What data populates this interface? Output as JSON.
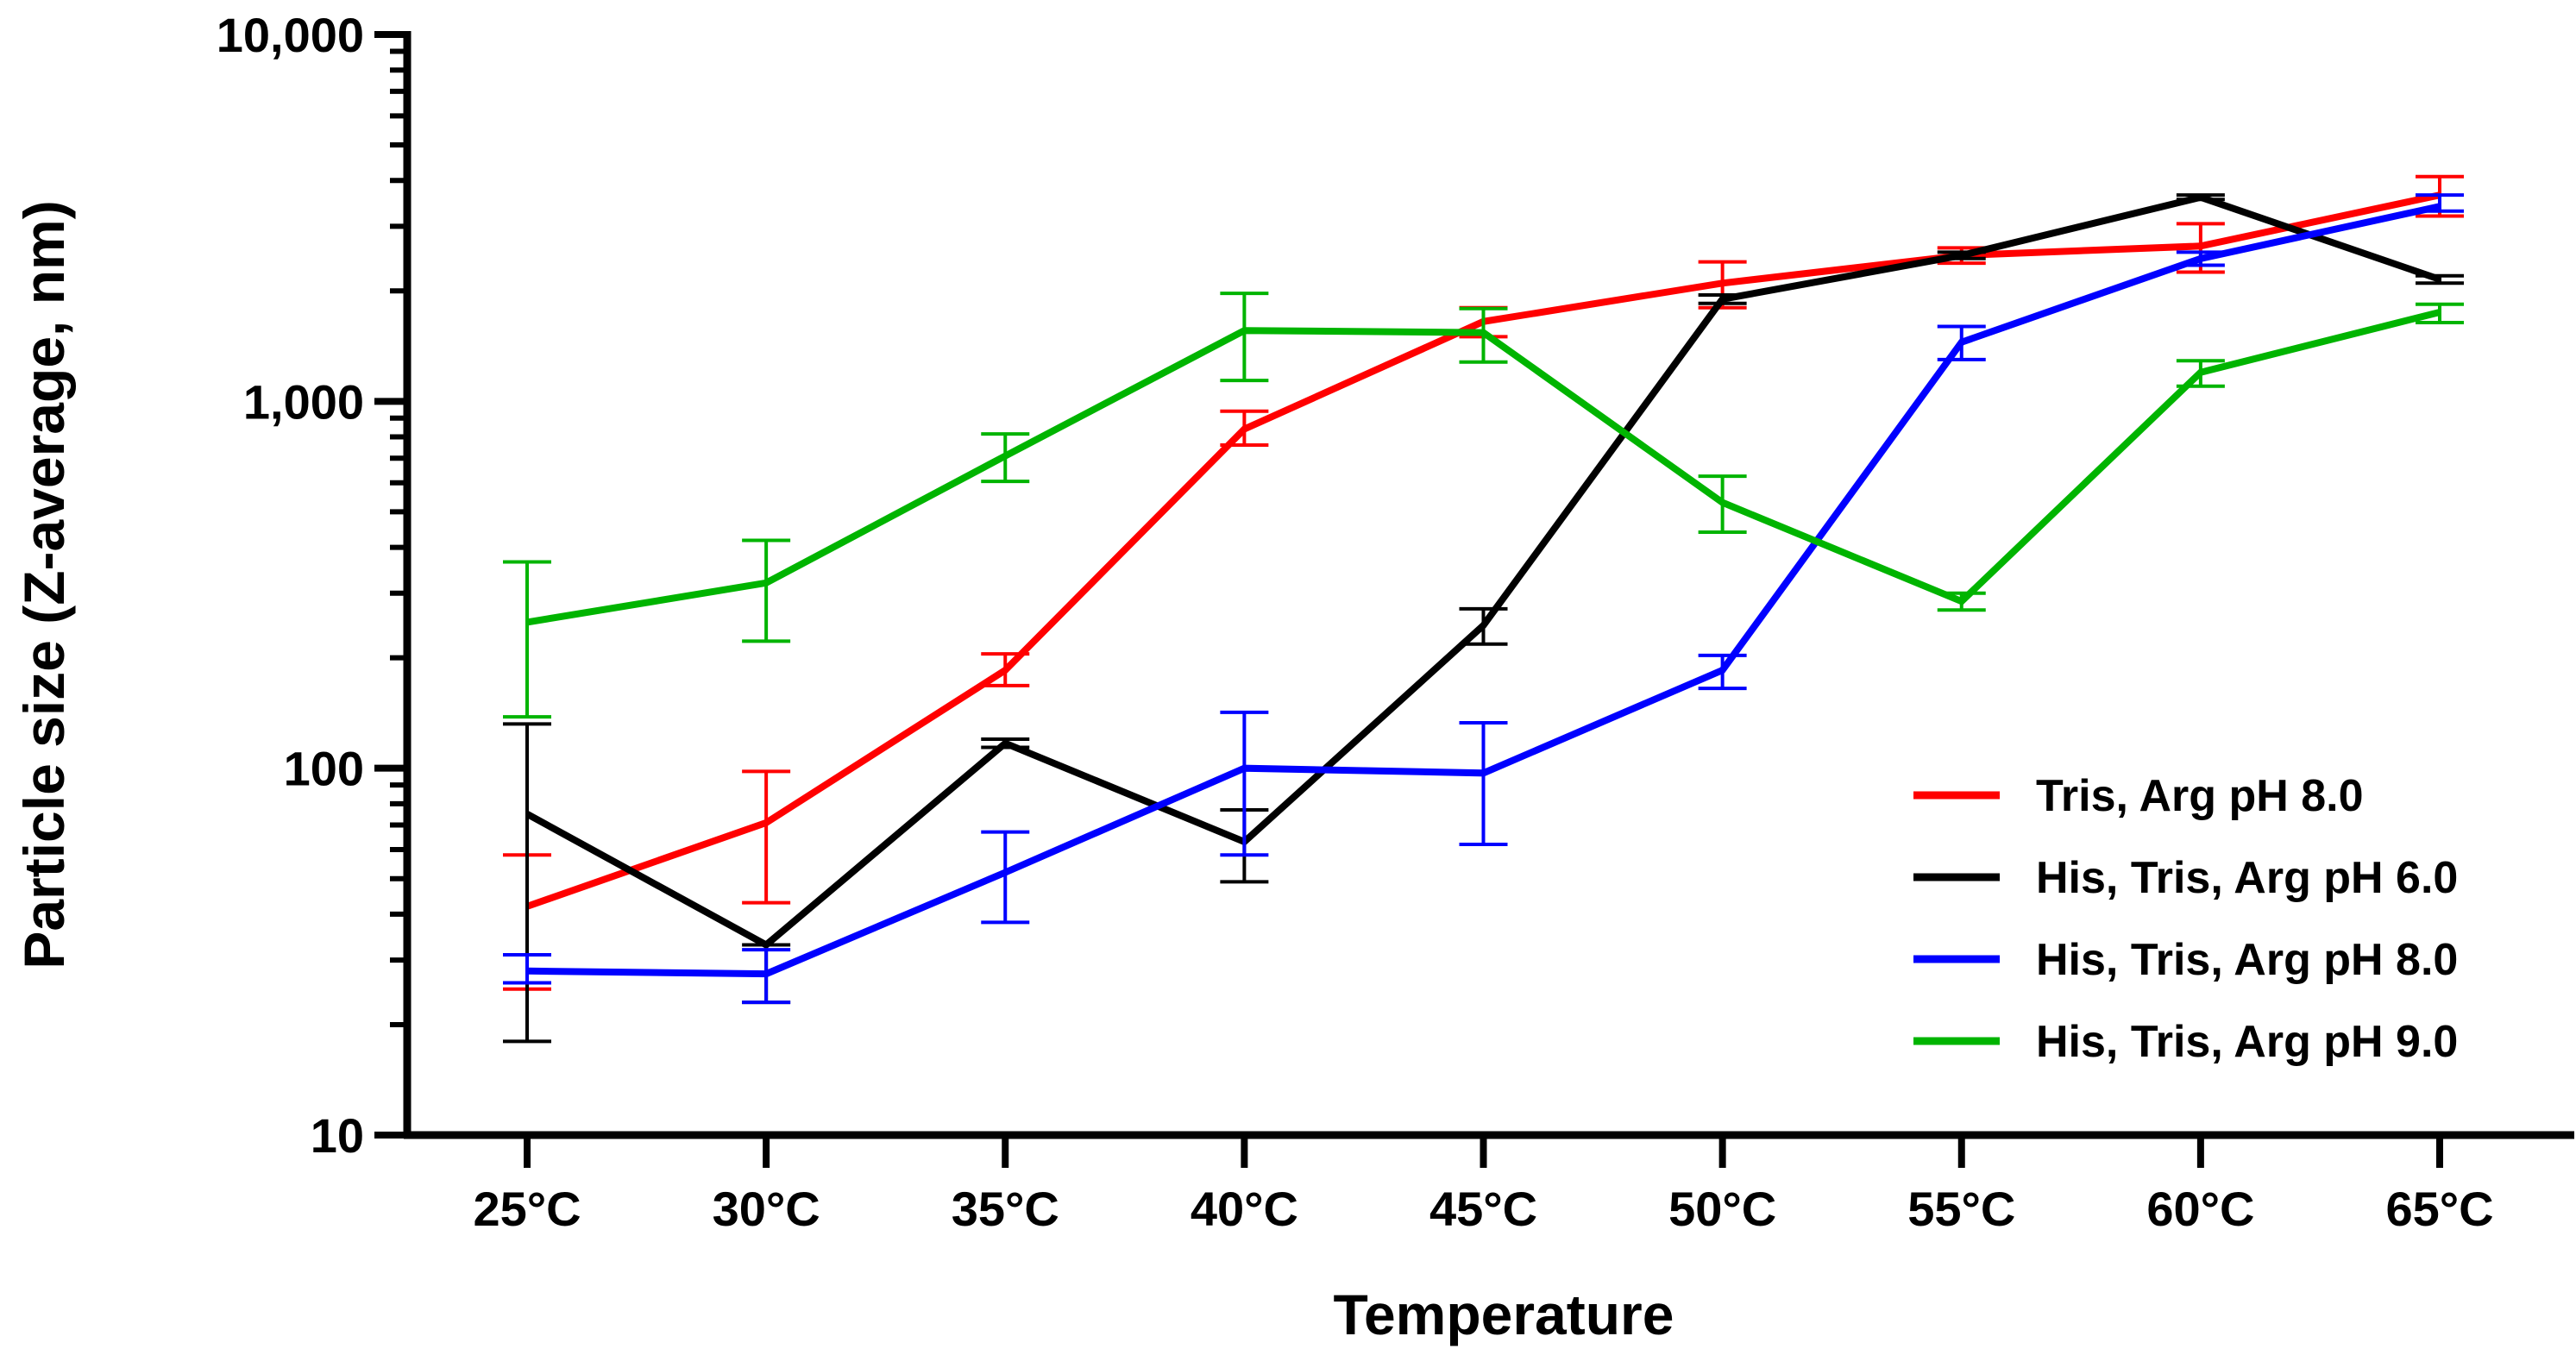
{
  "chart_data": {
    "type": "line",
    "title": "",
    "xlabel": "Temperature",
    "ylabel": "Particle size (Z-average, nm)",
    "yscale": "log",
    "ylim": [
      10,
      10000
    ],
    "yticks": [
      10,
      100,
      1000,
      10000
    ],
    "ytick_labels": [
      "10",
      "100",
      "1,000",
      "10,000"
    ],
    "categories": [
      "25°C",
      "30°C",
      "35°C",
      "40°C",
      "45°C",
      "50°C",
      "55°C",
      "60°C",
      "65°C"
    ],
    "legend_position": "bottom-right",
    "series": [
      {
        "name": "Tris, Arg pH 8.0",
        "color": "#ff0000",
        "values": [
          42,
          71,
          185,
          840,
          1650,
          2100,
          2500,
          2650,
          3650
        ],
        "err_low": [
          25,
          43,
          168,
          760,
          1500,
          1800,
          2380,
          2250,
          3200
        ],
        "err_high": [
          58,
          98,
          205,
          940,
          1800,
          2400,
          2620,
          3050,
          4100
        ]
      },
      {
        "name": "His, Tris, Arg pH 6.0",
        "color": "#000000",
        "values": [
          75,
          33,
          117,
          63,
          245,
          1900,
          2500,
          3600,
          2150
        ],
        "err_low": [
          18,
          23,
          114,
          49,
          218,
          1850,
          2450,
          3550,
          2100
        ],
        "err_high": [
          132,
          33,
          120,
          77,
          272,
          1950,
          2550,
          3650,
          2200
        ]
      },
      {
        "name": "His, Tris, Arg pH 8.0",
        "color": "#0000ff",
        "values": [
          28,
          27.5,
          52,
          100,
          97,
          185,
          1450,
          2450,
          3400
        ],
        "err_low": [
          26,
          23,
          38,
          58,
          62,
          165,
          1300,
          2350,
          3300
        ],
        "err_high": [
          31,
          32,
          67,
          142,
          133,
          203,
          1600,
          2550,
          3650
        ]
      },
      {
        "name": "His, Tris, Arg pH 9.0",
        "color": "#00b400",
        "values": [
          250,
          320,
          710,
          1560,
          1540,
          530,
          285,
          1200,
          1750
        ],
        "err_low": [
          138,
          222,
          605,
          1140,
          1280,
          440,
          270,
          1100,
          1640
        ],
        "err_high": [
          365,
          418,
          815,
          1970,
          1790,
          625,
          300,
          1290,
          1840
        ]
      }
    ]
  }
}
